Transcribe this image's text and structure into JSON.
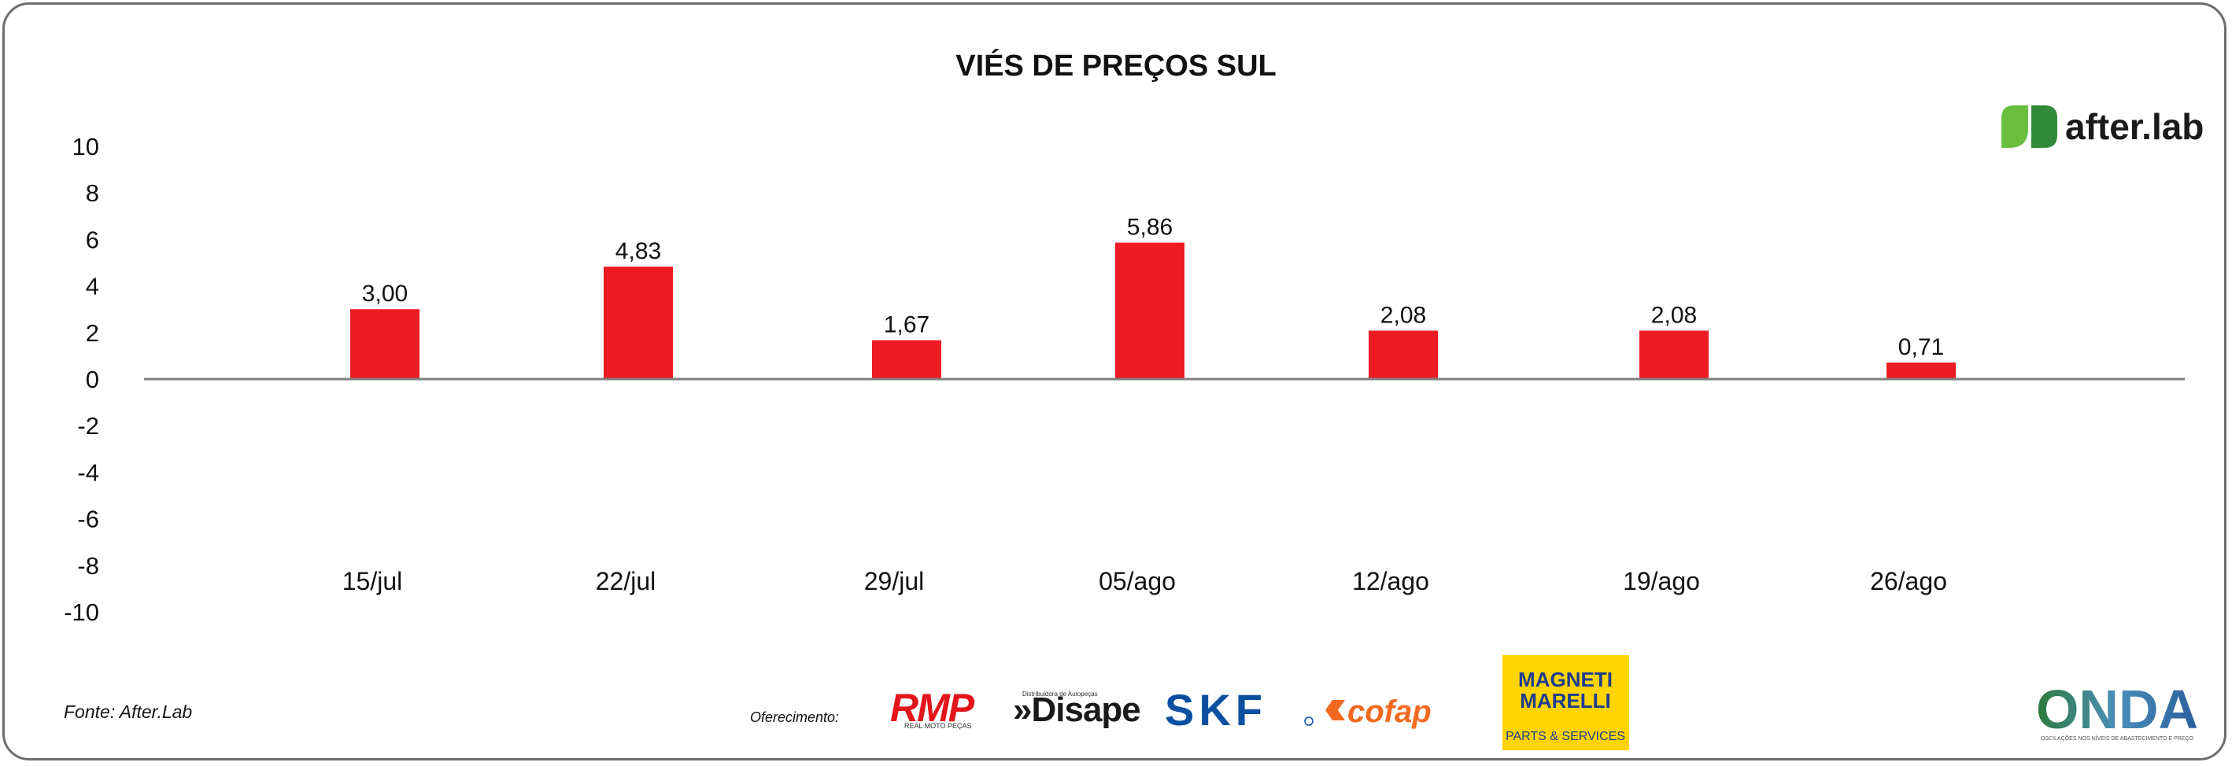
{
  "chart_data": {
    "type": "bar",
    "title": "VIÉS DE PREÇOS SUL",
    "categories": [
      "15/jul",
      "22/jul",
      "29/jul",
      "05/ago",
      "12/ago",
      "19/ago",
      "26/ago"
    ],
    "values": [
      3.0,
      4.83,
      1.67,
      5.86,
      2.08,
      2.08,
      0.71
    ],
    "data_labels": [
      "3,00",
      "4,83",
      "1,67",
      "5,86",
      "2,08",
      "2,08",
      "0,71"
    ],
    "ylim": [
      -10,
      10
    ],
    "yticks": [
      "10",
      "8",
      "6",
      "4",
      "2",
      "0",
      "-2",
      "-4",
      "-6",
      "-8",
      "-10"
    ],
    "grid": false,
    "bar_color": "#ed1c24",
    "zero_line_color": "#7f7f7f"
  },
  "footer": {
    "source": "Fonte: After.Lab",
    "sponsor_label": "Oferecimento:",
    "sponsors": {
      "rmp": "RMP",
      "rmp_sub": "REAL MOTO PEÇAS",
      "disape": "»Disape",
      "disape_sub": "Distribuidora de Autopeças",
      "skf": "SKF",
      "cofap": "cofap",
      "magneti_1": "MAGNETI",
      "magneti_2": "MARELLI",
      "magneti_3": "PARTS & SERVICES"
    },
    "onda": "ONDA",
    "onda_sub": "OSCILAÇÕES NOS NÍVEIS DE ABASTECIMENTO E PREÇO"
  },
  "brand": {
    "logo_text": "after.lab",
    "green": "#6abf3f",
    "dark_green": "#2f8a3a"
  }
}
